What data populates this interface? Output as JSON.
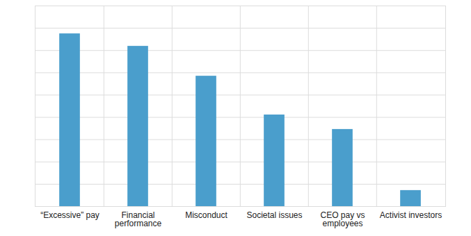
{
  "chart_data": {
    "type": "bar",
    "categories": [
      "“Excessive” pay",
      "Financial performance",
      "Misconduct",
      "Societal issues",
      "CEO pay vs employees",
      "Activist investors"
    ],
    "values": [
      7.75,
      7.19,
      5.85,
      4.11,
      3.46,
      0.72
    ],
    "color": "#4a9ecc",
    "ylim": [
      0,
      9
    ],
    "yticks": [
      0,
      1,
      2,
      3,
      4,
      5,
      6,
      7,
      8,
      9
    ],
    "grid": true,
    "tick_labels": "x"
  }
}
